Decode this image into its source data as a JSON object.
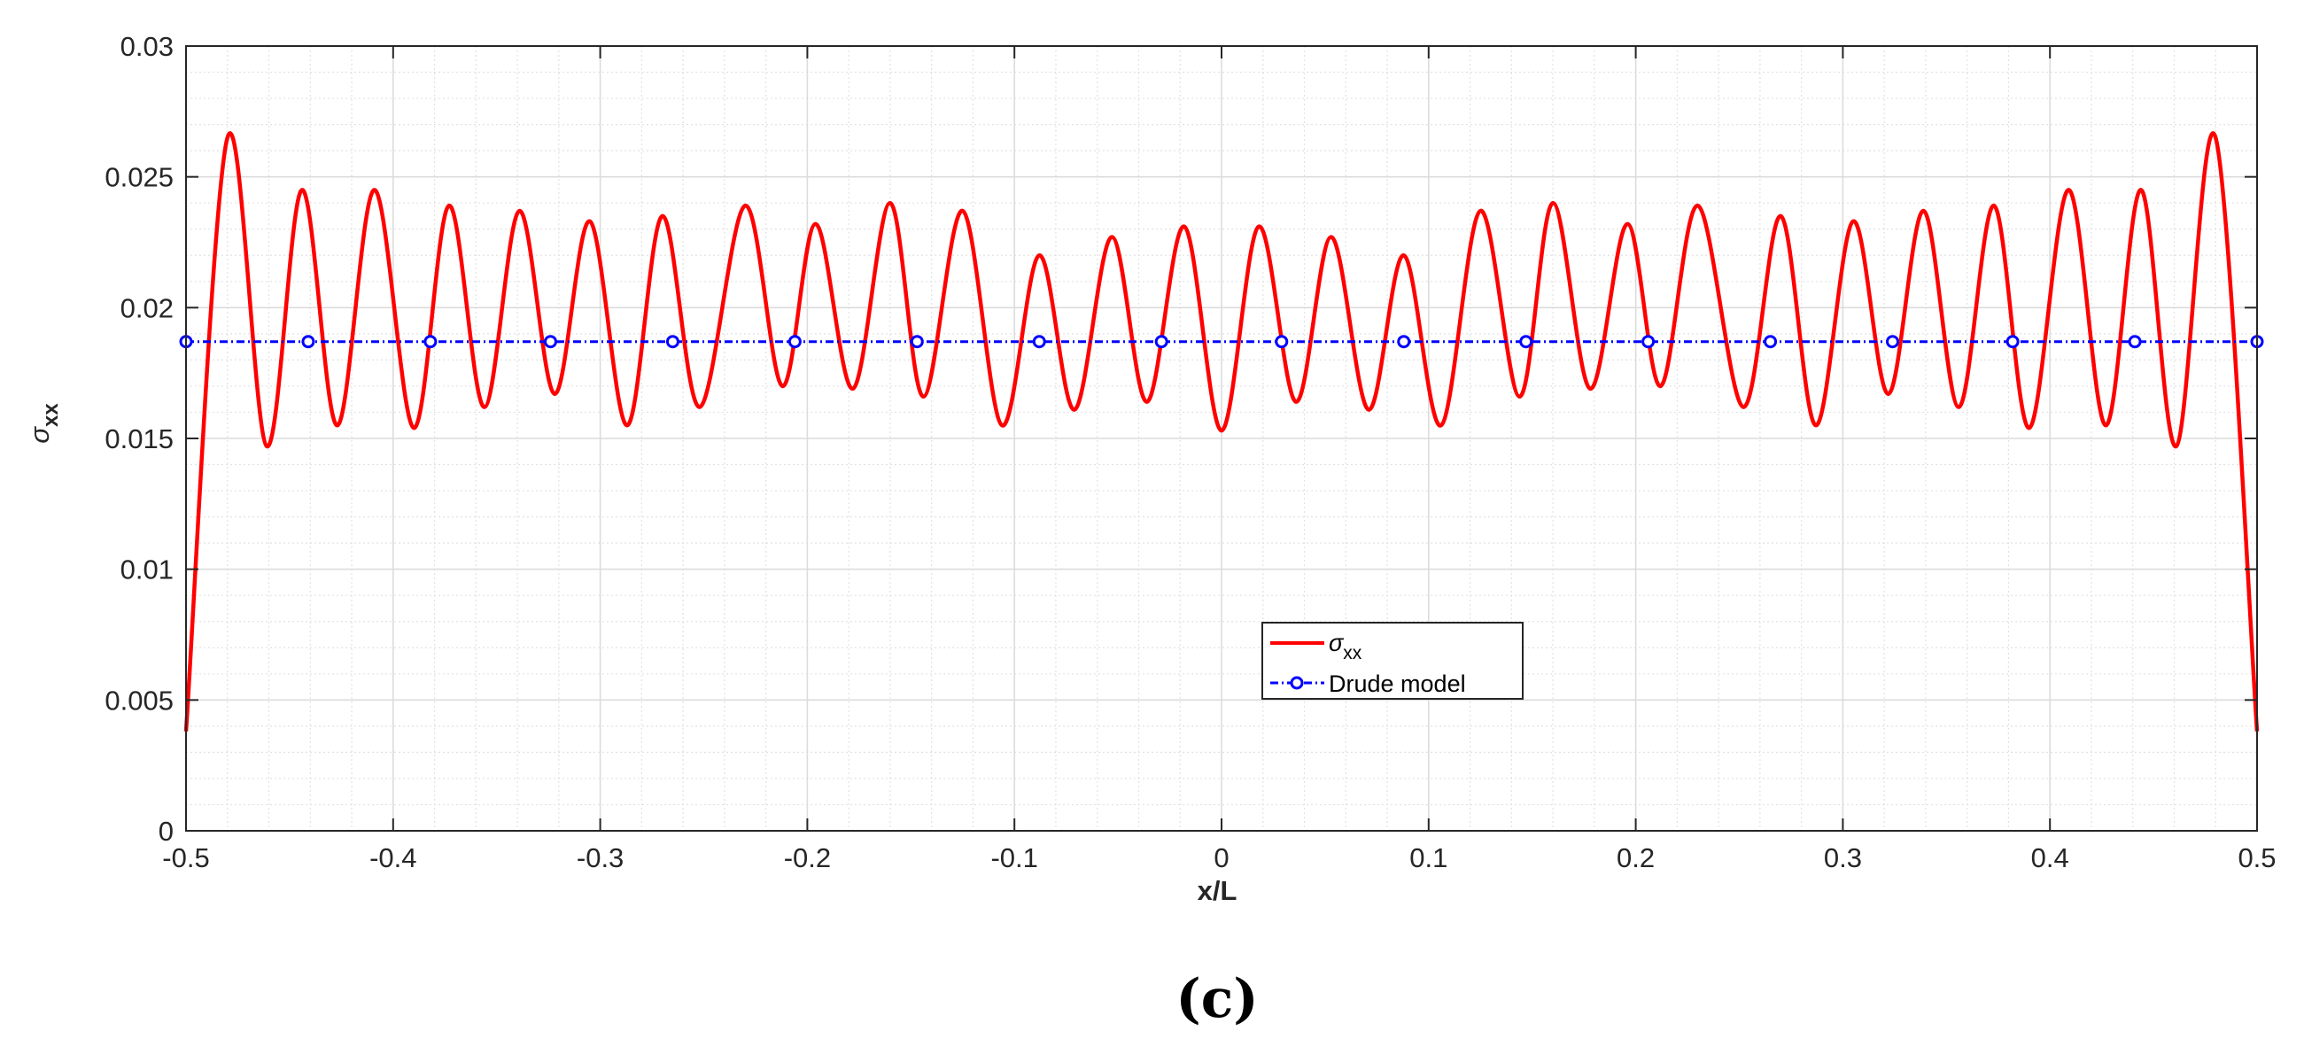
{
  "chart_data": {
    "type": "line",
    "title": "",
    "xlabel": "x/L",
    "ylabel": "σ",
    "ylabel_subscript": "xx",
    "xlim": [
      -0.5,
      0.5
    ],
    "ylim": [
      0,
      0.03
    ],
    "xticks": [
      -0.5,
      -0.4,
      -0.3,
      -0.2,
      -0.1,
      0,
      0.1,
      0.2,
      0.3,
      0.4,
      0.5
    ],
    "xtick_labels": [
      "-0.5",
      "-0.4",
      "-0.3",
      "-0.2",
      "-0.1",
      "0",
      "0.1",
      "0.2",
      "0.3",
      "0.4",
      "0.5"
    ],
    "yticks": [
      0,
      0.005,
      0.01,
      0.015,
      0.02,
      0.025,
      0.03
    ],
    "ytick_labels": [
      "0",
      "0.005",
      "0.01",
      "0.015",
      "0.02",
      "0.025",
      "0.03"
    ],
    "grid": true,
    "minor_grid": true,
    "legend_position": "center",
    "caption": "(c)",
    "series": [
      {
        "name": "σ",
        "name_subscript": "xx",
        "color": "#ff0000",
        "style": "solid",
        "x": [
          -0.5,
          -0.48,
          -0.461,
          -0.444,
          -0.427,
          -0.409,
          -0.39,
          -0.373,
          -0.356,
          -0.339,
          -0.322,
          -0.305,
          -0.287,
          -0.27,
          -0.252,
          -0.23,
          -0.212,
          -0.196,
          -0.178,
          -0.16,
          -0.144,
          -0.125,
          -0.106,
          -0.088,
          -0.071,
          -0.053,
          -0.036,
          -0.018,
          0,
          0.018,
          0.036,
          0.053,
          0.071,
          0.088,
          0.106,
          0.125,
          0.144,
          0.16,
          0.178,
          0.196,
          0.212,
          0.23,
          0.252,
          0.27,
          0.287,
          0.305,
          0.322,
          0.339,
          0.356,
          0.373,
          0.39,
          0.409,
          0.427,
          0.444,
          0.461,
          0.48,
          0.5
        ],
        "y": [
          0.0038,
          0.0265,
          0.0147,
          0.0245,
          0.0155,
          0.0245,
          0.0154,
          0.0239,
          0.0162,
          0.0237,
          0.0167,
          0.0233,
          0.0155,
          0.0235,
          0.0162,
          0.0239,
          0.017,
          0.0232,
          0.0169,
          0.024,
          0.0166,
          0.0237,
          0.0155,
          0.022,
          0.0161,
          0.0227,
          0.0164,
          0.0231,
          0.0153,
          0.0231,
          0.0164,
          0.0227,
          0.0161,
          0.022,
          0.0155,
          0.0237,
          0.0166,
          0.024,
          0.0169,
          0.0232,
          0.017,
          0.0239,
          0.0162,
          0.0235,
          0.0155,
          0.0233,
          0.0167,
          0.0237,
          0.0162,
          0.0239,
          0.0154,
          0.0245,
          0.0155,
          0.0245,
          0.0147,
          0.0265,
          0.0038
        ]
      },
      {
        "name": "Drude model",
        "color": "#0000ff",
        "style": "dash-dot",
        "marker": "circle",
        "x": [
          -0.5,
          -0.441,
          -0.382,
          -0.324,
          -0.265,
          -0.206,
          -0.147,
          -0.088,
          -0.029,
          0.029,
          0.088,
          0.147,
          0.206,
          0.265,
          0.324,
          0.382,
          0.441,
          0.5
        ],
        "y": [
          0.0187,
          0.0187,
          0.0187,
          0.0187,
          0.0187,
          0.0187,
          0.0187,
          0.0187,
          0.0187,
          0.0187,
          0.0187,
          0.0187,
          0.0187,
          0.0187,
          0.0187,
          0.0187,
          0.0187,
          0.0187
        ]
      }
    ]
  }
}
